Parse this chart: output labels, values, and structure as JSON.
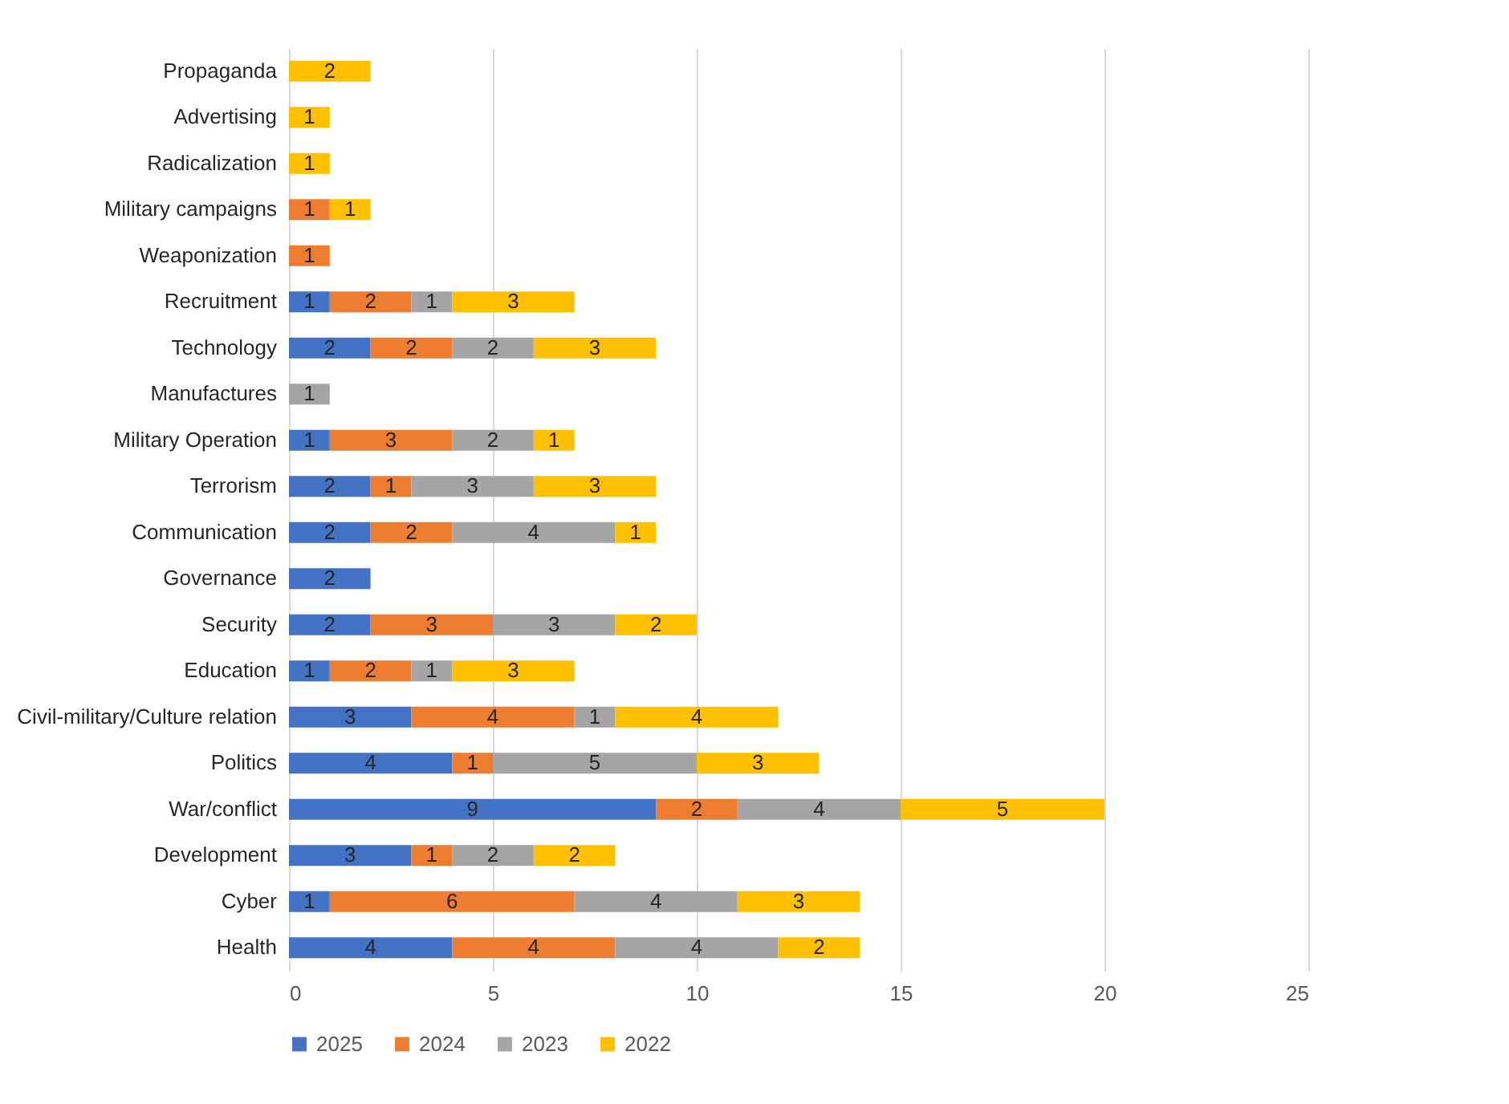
{
  "chart_data": {
    "type": "bar",
    "orientation": "horizontal",
    "stacked": true,
    "data_labels": true,
    "grid": "x",
    "legend": "bottom",
    "categories": [
      "Propaganda",
      "Advertising",
      "Radicalization",
      "Military campaigns",
      "Weaponization",
      "Recruitment",
      "Technology",
      "Manufactures",
      "Military Operation",
      "Terrorism",
      "Communication",
      "Governance",
      "Security",
      "Education",
      "Civil-military/Culture relation",
      "Politics",
      "War/conflict",
      "Development",
      "Cyber",
      "Health"
    ],
    "xlim": [
      0,
      25
    ],
    "xticks": [
      0,
      5,
      10,
      15,
      20,
      25
    ],
    "series": [
      {
        "name": "2025",
        "color": "#4472c4",
        "values": [
          null,
          null,
          null,
          null,
          null,
          1,
          2,
          null,
          1,
          2,
          2,
          2,
          2,
          1,
          3,
          4,
          9,
          3,
          1,
          4
        ]
      },
      {
        "name": "2024",
        "color": "#ed7d31",
        "values": [
          null,
          null,
          null,
          1,
          1,
          2,
          2,
          null,
          3,
          1,
          2,
          null,
          3,
          2,
          4,
          1,
          2,
          1,
          6,
          4
        ]
      },
      {
        "name": "2023",
        "color": "#a5a5a5",
        "values": [
          null,
          null,
          null,
          null,
          null,
          1,
          2,
          1,
          2,
          3,
          4,
          null,
          3,
          1,
          1,
          5,
          4,
          2,
          4,
          4
        ]
      },
      {
        "name": "2022",
        "color": "#ffc000",
        "values": [
          2,
          1,
          1,
          1,
          null,
          3,
          3,
          null,
          1,
          3,
          1,
          null,
          2,
          3,
          4,
          3,
          5,
          2,
          3,
          2
        ]
      }
    ]
  }
}
